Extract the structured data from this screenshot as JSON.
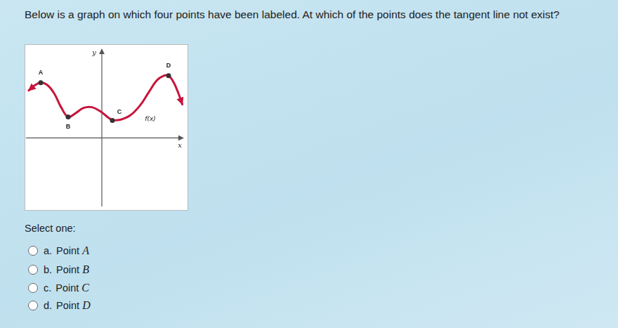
{
  "question": "Below is a graph on which four points have been labeled. At which of the points does the tangent line not exist?",
  "prompt": "Select one:",
  "options": [
    {
      "letter": "a.",
      "text": "Point",
      "point": "A"
    },
    {
      "letter": "b.",
      "text": "Point",
      "point": "B"
    },
    {
      "letter": "c.",
      "text": "Point",
      "point": "C"
    },
    {
      "letter": "d.",
      "text": "Point",
      "point": "D"
    }
  ],
  "chart_data": {
    "type": "line",
    "x_label": "x",
    "y_label": "y",
    "color": "#c8143c",
    "series": [
      {
        "x": [
          -5.25,
          -4.8,
          -4.35,
          -3.9,
          -3.4,
          -2.9,
          -2.4,
          -1.9,
          -1.3,
          -0.7,
          -0.1,
          0.4,
          0.75
        ],
        "values": [
          3.35,
          3.75,
          3.95,
          3.8,
          3.2,
          2.2,
          1.5,
          1.75,
          2.15,
          2.2,
          1.9,
          1.5,
          1.25
        ]
      },
      {
        "x": [
          0.75,
          1.3,
          2.0,
          2.7,
          3.3,
          3.9,
          4.4,
          4.75,
          5.1,
          5.45,
          5.75
        ],
        "values": [
          1.25,
          1.3,
          1.6,
          2.3,
          3.2,
          4.1,
          4.45,
          4.45,
          4.0,
          3.2,
          2.35
        ]
      }
    ],
    "points": [
      {
        "label": "A",
        "x": -4.35,
        "y": 3.95
      },
      {
        "label": "B",
        "x": -2.4,
        "y": 1.5
      },
      {
        "label": "C",
        "x": 0.75,
        "y": 1.25
      },
      {
        "label": "D",
        "x": 4.75,
        "y": 4.45
      }
    ],
    "annotations": [
      {
        "text": "f(x)",
        "x": 3.45,
        "y": 1.35
      }
    ],
    "xlim": [
      -5.5,
      6.15
    ],
    "ylim": [
      -5.2,
      6.7
    ],
    "grid": false,
    "tick_labels": false
  }
}
